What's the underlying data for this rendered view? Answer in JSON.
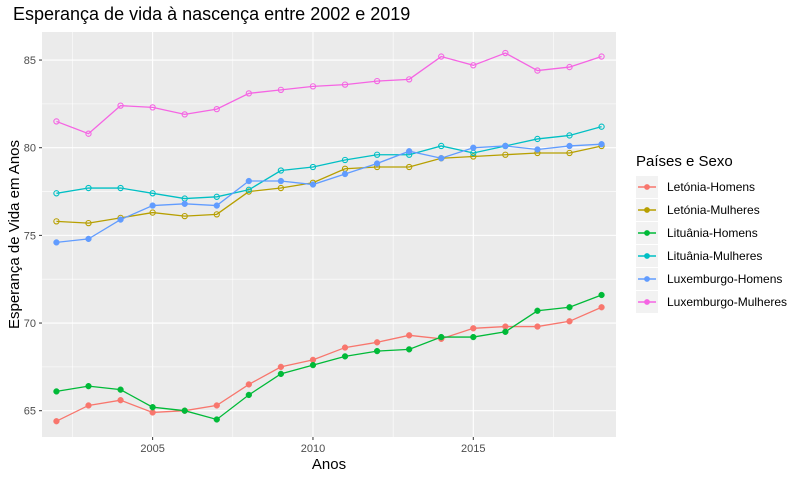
{
  "chart_data": {
    "type": "line",
    "title": "Esperança de vida à nascença entre 2002 e 2019",
    "xlabel": "Anos",
    "ylabel": "Esperança de Vida em Anos",
    "xlim": [
      2001.55,
      2019.45
    ],
    "ylim": [
      63.5,
      86.6
    ],
    "x_ticks": [
      2005,
      2010,
      2015
    ],
    "y_ticks": [
      65,
      70,
      75,
      80,
      85
    ],
    "grid": true,
    "legend_position": "right",
    "legend_title": "Países e Sexo",
    "x": [
      2002,
      2003,
      2004,
      2005,
      2006,
      2007,
      2008,
      2009,
      2010,
      2011,
      2012,
      2013,
      2014,
      2015,
      2016,
      2017,
      2018,
      2019
    ],
    "series": [
      {
        "name": "Letónia-Homens",
        "color": "#F8766D",
        "filled": true,
        "values": [
          64.4,
          65.3,
          65.6,
          64.9,
          65.0,
          65.3,
          66.5,
          67.5,
          67.9,
          68.6,
          68.9,
          69.3,
          69.1,
          69.7,
          69.8,
          69.8,
          70.1,
          70.9
        ]
      },
      {
        "name": "Letónia-Mulheres",
        "color": "#B79F00",
        "filled": false,
        "values": [
          75.8,
          75.7,
          76.0,
          76.3,
          76.1,
          76.2,
          77.5,
          77.7,
          78.0,
          78.8,
          78.9,
          78.9,
          79.4,
          79.5,
          79.6,
          79.7,
          79.7,
          80.1
        ]
      },
      {
        "name": "Lituânia-Homens",
        "color": "#00BA38",
        "filled": true,
        "values": [
          66.1,
          66.4,
          66.2,
          65.2,
          65.0,
          64.5,
          65.9,
          67.1,
          67.6,
          68.1,
          68.4,
          68.5,
          69.2,
          69.2,
          69.5,
          70.7,
          70.9,
          71.6
        ]
      },
      {
        "name": "Lituânia-Mulheres",
        "color": "#00BFC4",
        "filled": false,
        "values": [
          77.4,
          77.7,
          77.7,
          77.4,
          77.1,
          77.2,
          77.6,
          78.7,
          78.9,
          79.3,
          79.6,
          79.6,
          80.1,
          79.7,
          80.1,
          80.5,
          80.7,
          81.2
        ]
      },
      {
        "name": "Luxemburgo-Homens",
        "color": "#619CFF",
        "filled": true,
        "values": [
          74.6,
          74.8,
          75.9,
          76.7,
          76.8,
          76.7,
          78.1,
          78.1,
          77.9,
          78.5,
          79.1,
          79.8,
          79.4,
          80.0,
          80.1,
          79.9,
          80.1,
          80.2
        ]
      },
      {
        "name": "Luxemburgo-Mulheres",
        "color": "#F564E3",
        "filled": false,
        "values": [
          81.5,
          80.8,
          82.4,
          82.3,
          81.9,
          82.2,
          83.1,
          83.3,
          83.5,
          83.6,
          83.8,
          83.9,
          85.2,
          84.7,
          85.4,
          84.4,
          84.6,
          85.2
        ]
      }
    ]
  }
}
